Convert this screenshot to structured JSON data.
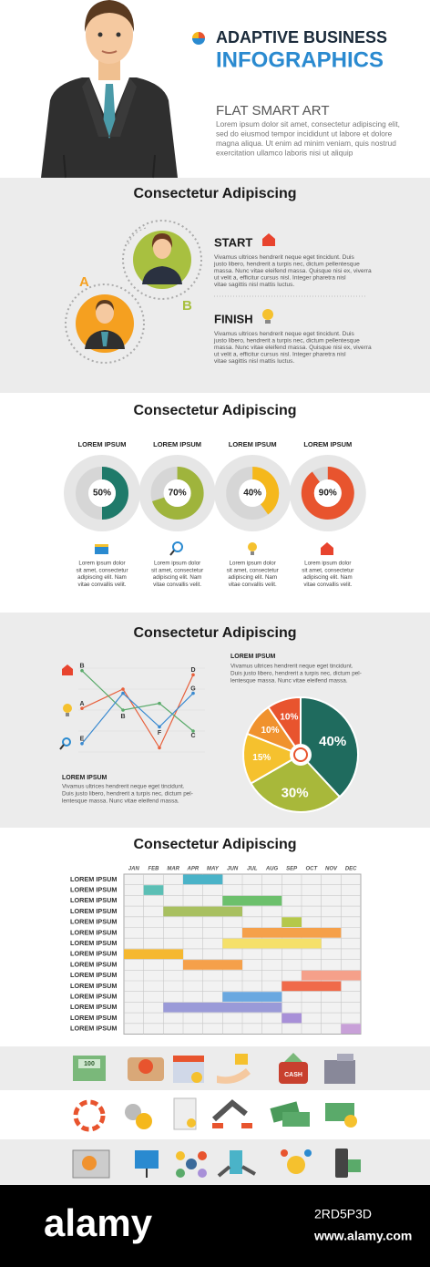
{
  "header": {
    "title_line1": "ADAPTIVE BUSINESS",
    "title_line2": "INFOGRAPHICS",
    "subtitle": "FLAT SMART ART",
    "paragraph": [
      "Lorem ipsum dolor sit amet, consectetur adipiscing elit,",
      "sed do eiusmod tempor incididunt ut labore et dolore",
      "magna aliqua. Ut enim ad minim veniam, quis nostrud",
      "exercitation ullamco laboris nisi ut aliquip"
    ]
  },
  "section_start_finish": {
    "title": "Consectetur Adipiscing",
    "label_a": "A",
    "label_b": "B",
    "steps": [
      {
        "title": "START",
        "lines": [
          "Vivamus ultrices hendrerit neque eget tincidunt. Duis",
          "justo libero, hendrerit a turpis nec, dictum pellentesque",
          "massa. Nunc vitae eleifend massa. Quisque nisi ex, viverra",
          "ut velit a, efficitur cursus nisl. Integer pharetra nisl",
          "vitae sagittis nisl mattis luctus."
        ]
      },
      {
        "title": "FINISH",
        "lines": [
          "Vivamus ultrices hendrerit neque eget tincidunt. Duis",
          "justo libero, hendrerit a turpis nec, dictum pellentesque",
          "massa. Nunc vitae eleifend massa. Quisque nisi ex, viverra",
          "ut velit a, efficitur cursus nisl. Integer pharetra nisl",
          "vitae sagittis nisl mattis luctus."
        ]
      }
    ]
  },
  "section_donuts": {
    "title": "Consectetur Adipiscing",
    "donuts": [
      {
        "label": "LOREM IPSUM",
        "value": 50,
        "value_label": "50%",
        "color": "#1f7a6a",
        "lines": [
          "Lorem ipsum dolor",
          "sit amet, consectetur",
          "adipiscing elit. Nam",
          "vitae convallis velit."
        ]
      },
      {
        "label": "LOREM IPSUM",
        "value": 70,
        "value_label": "70%",
        "color": "#9fb43c",
        "lines": [
          "Lorem ipsum dolor",
          "sit amet, consectetur",
          "adipiscing elit. Nam",
          "vitae convallis velit."
        ]
      },
      {
        "label": "LOREM IPSUM",
        "value": 40,
        "value_label": "40%",
        "color": "#f5b81c",
        "lines": [
          "Lorem ipsum dolor",
          "sit amet, consectetur",
          "adipiscing elit. Nam",
          "vitae convallis velit."
        ]
      },
      {
        "label": "LOREM IPSUM",
        "value": 90,
        "value_label": "90%",
        "color": "#e8542e",
        "lines": [
          "Lorem ipsum dolor",
          "sit amet, consectetur",
          "adipiscing elit. Nam",
          "vitae convallis velit."
        ]
      }
    ]
  },
  "section_charts": {
    "title": "Consectetur Adipiscing",
    "line_chart": {
      "type": "line",
      "ylim": [
        0,
        100
      ],
      "series": [
        {
          "color": "#e8603c",
          "values": [
            52,
            75,
            5,
            92
          ],
          "point_labels": [
            {
              "index": 0,
              "text": "A"
            },
            {
              "index": 3,
              "text": "D"
            }
          ]
        },
        {
          "color": "#5aaa6a",
          "values": [
            97,
            50,
            58,
            25
          ],
          "point_labels": [
            {
              "index": 0,
              "text": "B"
            },
            {
              "index": 1,
              "text": "B"
            },
            {
              "index": 3,
              "text": "C"
            }
          ]
        },
        {
          "color": "#3a8ad0",
          "values": [
            10,
            70,
            30,
            70
          ],
          "point_labels": [
            {
              "index": 0,
              "text": "E"
            },
            {
              "index": 2,
              "text": "F"
            },
            {
              "index": 3,
              "text": "G"
            }
          ]
        }
      ]
    },
    "text_right": {
      "heading": "LOREM IPSUM",
      "lines": [
        "Vivamus ultrices hendrerit neque eget tincidunt.",
        "Duis justo libero, hendrerit a turpis nec, dictum pel-",
        "lentesque massa. Nunc vitae eleifend massa."
      ]
    },
    "text_left": {
      "heading": "LOREM IPSUM",
      "lines": [
        "Vivamus ultrices hendrerit neque eget tincidunt.",
        "Duis justo libero, hendrerit a turpis nec, dictum pel-",
        "lentesque massa. Nunc vitae eleifend massa."
      ]
    },
    "pie": {
      "type": "pie",
      "values": [
        40,
        30,
        15,
        10,
        10
      ],
      "value_labels": [
        "40%",
        "30%",
        "15%",
        "10%",
        "10%"
      ],
      "colors": [
        "#1f6b5e",
        "#a8b83a",
        "#f5c12e",
        "#f0922e",
        "#e8542e"
      ]
    }
  },
  "section_gantt": {
    "title": "Consectetur Adipiscing",
    "months": [
      "JAN",
      "FEB",
      "MAR",
      "APR",
      "MAY",
      "JUN",
      "JUL",
      "AUG",
      "SEP",
      "OCT",
      "NOV",
      "DEC"
    ],
    "rows": [
      {
        "label": "LOREM IPSUM",
        "start": "APR",
        "end": "MAY",
        "color": "#4ab3c8"
      },
      {
        "label": "LOREM IPSUM",
        "start": "FEB",
        "end": "FEB",
        "color": "#5bbfb5"
      },
      {
        "label": "LOREM IPSUM",
        "start": "JUN",
        "end": "AUG",
        "color": "#6cc06c"
      },
      {
        "label": "LOREM IPSUM",
        "start": "MAR",
        "end": "JUN",
        "color": "#a8c060"
      },
      {
        "label": "LOREM IPSUM",
        "start": "SEP",
        "end": "SEP",
        "color": "#b5c84a"
      },
      {
        "label": "LOREM IPSUM",
        "start": "JUL",
        "end": "NOV",
        "color": "#f5a04a"
      },
      {
        "label": "LOREM IPSUM",
        "start": "JUN",
        "end": "OCT",
        "color": "#f5e06a"
      },
      {
        "label": "LOREM IPSUM",
        "start": "JAN",
        "end": "MAR",
        "color": "#f5b830"
      },
      {
        "label": "LOREM IPSUM",
        "start": "APR",
        "end": "JUN",
        "color": "#f5a04a"
      },
      {
        "label": "LOREM IPSUM",
        "start": "OCT",
        "end": "DEC",
        "color": "#f5a08a"
      },
      {
        "label": "LOREM IPSUM",
        "start": "SEP",
        "end": "NOV",
        "color": "#f06a4a"
      },
      {
        "label": "LOREM IPSUM",
        "start": "JUN",
        "end": "AUG",
        "color": "#6aa8e0"
      },
      {
        "label": "LOREM IPSUM",
        "start": "MAR",
        "end": "AUG",
        "color": "#9a9ad8"
      },
      {
        "label": "LOREM IPSUM",
        "start": "SEP",
        "end": "SEP",
        "color": "#a890d8"
      },
      {
        "label": "LOREM IPSUM",
        "start": "DEC",
        "end": "DEC",
        "color": "#c8a0d8"
      }
    ]
  },
  "icons": {
    "bill": "100",
    "cash": "CASH"
  },
  "footer": {
    "brand": "alamy",
    "image_id": "2RD5P3D",
    "url": "www.alamy.com"
  }
}
